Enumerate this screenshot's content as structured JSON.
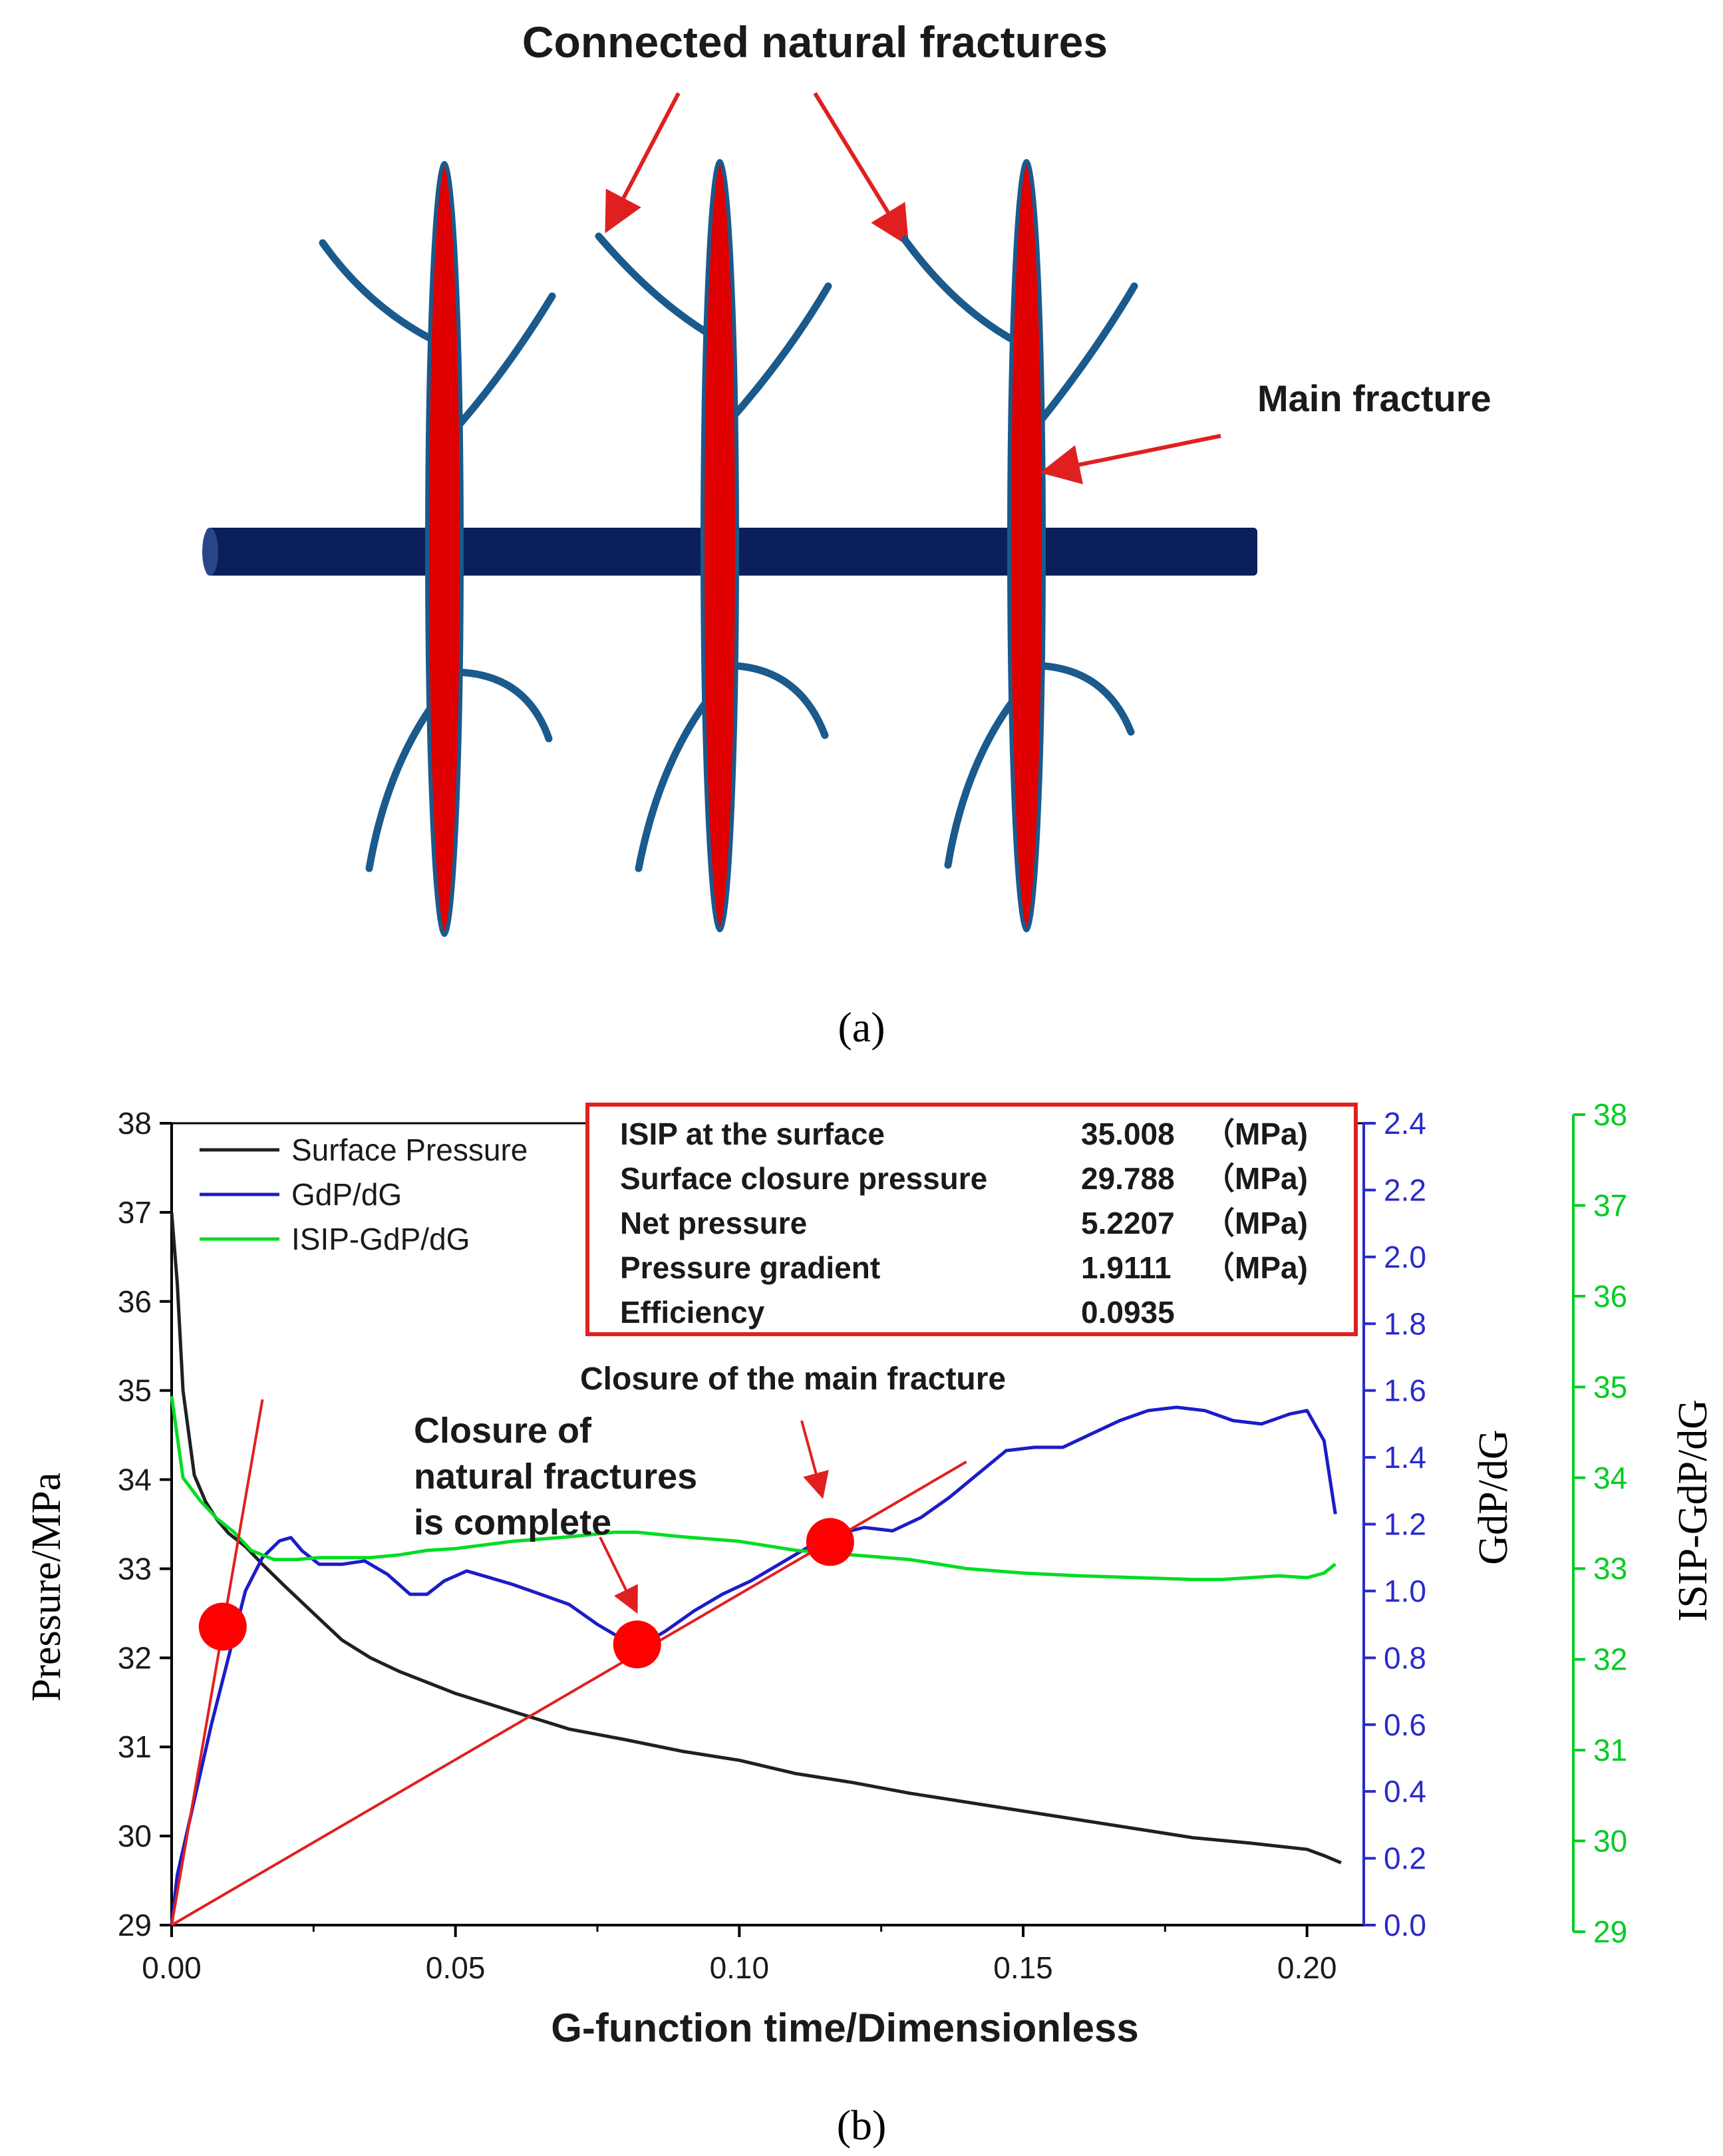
{
  "panel_a": {
    "label": "(a)",
    "callout_natural": "Connected natural fractures",
    "callout_main": "Main fracture",
    "colors": {
      "wellbore": "#0b1f5c",
      "main_fracture": "#e00000",
      "natural_fracture": "#1a5a8c",
      "arrow": "#e02020"
    }
  },
  "panel_b": {
    "label": "(b)",
    "xlabel": "G-function time/Dimensionless",
    "ylabel_left": "Pressure/MPa",
    "ylabel_right1": "GdP/dG",
    "ylabel_right2": "ISIP-GdP/dG",
    "annotation_main": "Closure of the main fracture",
    "annotation_natural": [
      "Closure of",
      "natural fractures",
      "is complete"
    ],
    "info_box": {
      "rows": [
        {
          "label": "ISIP at the surface",
          "value": "35.008",
          "unit": "（MPa)"
        },
        {
          "label": "Surface closure pressure",
          "value": "29.788",
          "unit": "（MPa)"
        },
        {
          "label": "Net pressure",
          "value": "5.2207",
          "unit": "（MPa)"
        },
        {
          "label": "Pressure gradient",
          "value": "1.9111",
          "unit": "（MPa)"
        },
        {
          "label": "Efficiency",
          "value": "0.0935",
          "unit": ""
        }
      ]
    }
  },
  "chart_data": {
    "type": "line",
    "x_ticks": [
      "0.00",
      "0.05",
      "0.10",
      "0.15",
      "0.20"
    ],
    "y_left_ticks": [
      "29",
      "30",
      "31",
      "32",
      "33",
      "34",
      "35",
      "36",
      "37",
      "38"
    ],
    "y_right1_ticks": [
      "0.0",
      "0.2",
      "0.4",
      "0.6",
      "0.8",
      "1.0",
      "1.2",
      "1.4",
      "1.6",
      "1.8",
      "2.0",
      "2.2",
      "2.4"
    ],
    "y_right2_ticks": [
      "29",
      "30",
      "31",
      "32",
      "33",
      "34",
      "35",
      "36",
      "37",
      "38"
    ],
    "xlim": [
      0.0,
      0.21
    ],
    "ylim_left": [
      29,
      38
    ],
    "ylim_right1": [
      0.0,
      2.4
    ],
    "ylim_right2": [
      29,
      38
    ],
    "legend_position": "top-left",
    "series": [
      {
        "name": "Surface Pressure",
        "axis": "left",
        "color": "#202020",
        "x": [
          0.0,
          0.001,
          0.002,
          0.004,
          0.006,
          0.008,
          0.01,
          0.013,
          0.016,
          0.02,
          0.025,
          0.03,
          0.035,
          0.04,
          0.05,
          0.06,
          0.07,
          0.08,
          0.09,
          0.1,
          0.11,
          0.12,
          0.13,
          0.14,
          0.15,
          0.16,
          0.17,
          0.18,
          0.19,
          0.2,
          0.203,
          0.206
        ],
        "y": [
          37.0,
          36.2,
          35.0,
          34.05,
          33.75,
          33.55,
          33.4,
          33.25,
          33.05,
          32.8,
          32.5,
          32.2,
          32.0,
          31.85,
          31.6,
          31.4,
          31.2,
          31.08,
          30.95,
          30.85,
          30.7,
          30.6,
          30.48,
          30.38,
          30.28,
          30.18,
          30.08,
          29.98,
          29.92,
          29.85,
          29.78,
          29.7
        ]
      },
      {
        "name": "GdP/dG",
        "axis": "right1",
        "color": "#1c1cc8",
        "x": [
          0.0,
          0.001,
          0.003,
          0.005,
          0.007,
          0.01,
          0.013,
          0.016,
          0.019,
          0.021,
          0.023,
          0.026,
          0.03,
          0.034,
          0.038,
          0.042,
          0.045,
          0.048,
          0.052,
          0.056,
          0.06,
          0.065,
          0.07,
          0.075,
          0.08,
          0.083,
          0.087,
          0.092,
          0.097,
          0.102,
          0.107,
          0.112,
          0.117,
          0.122,
          0.127,
          0.132,
          0.137,
          0.142,
          0.147,
          0.152,
          0.157,
          0.162,
          0.167,
          0.172,
          0.177,
          0.182,
          0.187,
          0.192,
          0.197,
          0.2,
          0.203,
          0.205
        ],
        "y": [
          0.0,
          0.15,
          0.3,
          0.45,
          0.6,
          0.8,
          1.0,
          1.1,
          1.15,
          1.16,
          1.12,
          1.08,
          1.08,
          1.09,
          1.05,
          0.99,
          0.99,
          1.03,
          1.06,
          1.04,
          1.02,
          0.99,
          0.96,
          0.9,
          0.85,
          0.84,
          0.88,
          0.94,
          0.99,
          1.03,
          1.08,
          1.13,
          1.17,
          1.19,
          1.18,
          1.22,
          1.28,
          1.35,
          1.42,
          1.43,
          1.43,
          1.47,
          1.51,
          1.54,
          1.55,
          1.54,
          1.51,
          1.5,
          1.53,
          1.54,
          1.45,
          1.23
        ]
      },
      {
        "name": "ISIP-GdP/dG",
        "axis": "right2",
        "color": "#00dd22",
        "x": [
          0.0,
          0.002,
          0.005,
          0.008,
          0.011,
          0.014,
          0.018,
          0.022,
          0.026,
          0.03,
          0.035,
          0.04,
          0.045,
          0.05,
          0.06,
          0.07,
          0.078,
          0.082,
          0.09,
          0.1,
          0.11,
          0.12,
          0.13,
          0.14,
          0.15,
          0.16,
          0.17,
          0.18,
          0.185,
          0.19,
          0.195,
          0.2,
          0.203,
          0.205
        ],
        "y": [
          34.9,
          34.0,
          33.75,
          33.55,
          33.4,
          33.2,
          33.1,
          33.1,
          33.12,
          33.12,
          33.12,
          33.15,
          33.2,
          33.22,
          33.3,
          33.35,
          33.4,
          33.4,
          33.35,
          33.3,
          33.2,
          33.15,
          33.1,
          33.0,
          32.95,
          32.92,
          32.9,
          32.88,
          32.88,
          32.9,
          32.92,
          32.9,
          32.95,
          33.05
        ]
      }
    ],
    "fit_lines": [
      {
        "color": "#e02020",
        "axis": "left",
        "x": [
          0.0,
          0.016
        ],
        "y": [
          29.0,
          34.9
        ]
      },
      {
        "color": "#e02020",
        "axis": "left",
        "x": [
          0.0,
          0.14
        ],
        "y": [
          29.0,
          34.2
        ]
      }
    ],
    "markers": [
      {
        "color": "#ff0000",
        "axis": "left",
        "x": 0.009,
        "y": 32.35
      },
      {
        "color": "#ff0000",
        "axis": "left",
        "x": 0.082,
        "y": 32.15
      },
      {
        "color": "#ff0000",
        "axis": "left",
        "x": 0.116,
        "y": 33.3
      }
    ]
  }
}
